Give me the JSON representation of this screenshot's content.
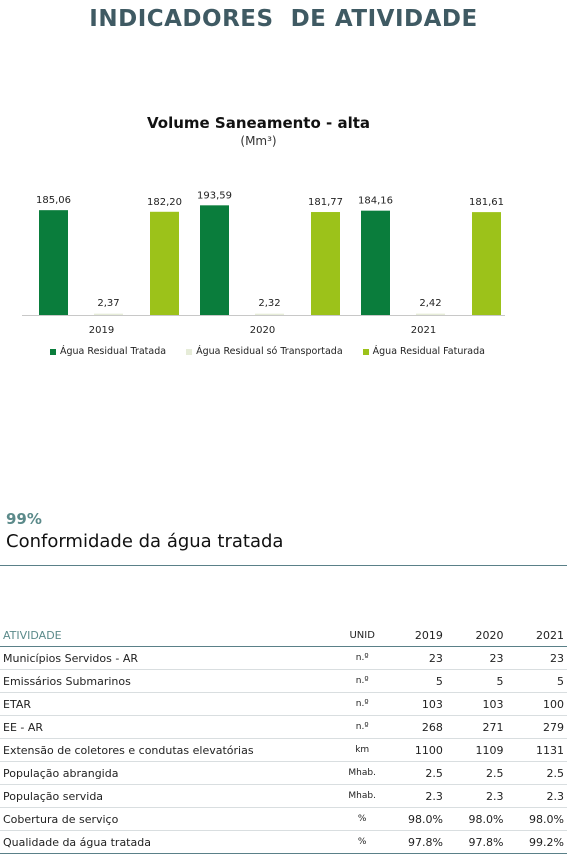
{
  "page": {
    "title": "INDICADORES  DE ATIVIDADE"
  },
  "chart_data": {
    "type": "bar",
    "title": "Volume Saneamento - alta",
    "subtitle": "(Mm³)",
    "categories": [
      "2019",
      "2020",
      "2021"
    ],
    "series": [
      {
        "name": "Água Residual Tratada",
        "values": [
          185.06,
          193.59,
          184.16
        ],
        "labels": [
          "185,06",
          "193,59",
          "184,16"
        ],
        "color": "#0a7d3c"
      },
      {
        "name": "Água Residual só Transportada",
        "values": [
          2.37,
          2.32,
          2.42
        ],
        "labels": [
          "2,37",
          "2,32",
          "2,42"
        ],
        "color": "#e6ecd8"
      },
      {
        "name": "Água Residual Faturada",
        "values": [
          182.2,
          181.77,
          181.61
        ],
        "labels": [
          "182,20",
          "181,77",
          "181,61"
        ],
        "color": "#9cc21a"
      }
    ],
    "ylim": [
      0,
      200
    ],
    "grid": false,
    "legend_position": "bottom"
  },
  "kpi": {
    "value": "99%",
    "label": "Conformidade da água tratada"
  },
  "table": {
    "headers": {
      "name": "ATIVIDADE",
      "unit": "UNID",
      "y2019": "2019",
      "y2020": "2020",
      "y2021": "2021"
    },
    "rows": [
      {
        "name": "Municípios Servidos - AR",
        "unit": "n.º",
        "y2019": "23",
        "y2020": "23",
        "y2021": "23"
      },
      {
        "name": "Emissários Submarinos",
        "unit": "n.º",
        "y2019": "5",
        "y2020": "5",
        "y2021": "5"
      },
      {
        "name": "ETAR",
        "unit": "n.º",
        "y2019": "103",
        "y2020": "103",
        "y2021": "100"
      },
      {
        "name": "EE - AR",
        "unit": "n.º",
        "y2019": "268",
        "y2020": "271",
        "y2021": "279"
      },
      {
        "name": "Extensão de coletores e condutas elevatórias",
        "unit": "km",
        "y2019": "1100",
        "y2020": "1109",
        "y2021": "1131"
      },
      {
        "name": "População abrangida",
        "unit": "Mhab.",
        "y2019": "2.5",
        "y2020": "2.5",
        "y2021": "2.5"
      },
      {
        "name": "População servida",
        "unit": "Mhab.",
        "y2019": "2.3",
        "y2020": "2.3",
        "y2021": "2.3"
      },
      {
        "name": "Cobertura de serviço",
        "unit": "%",
        "y2019": "98.0%",
        "y2020": "98.0%",
        "y2021": "98.0%"
      },
      {
        "name": "Qualidade da água tratada",
        "unit": "%",
        "y2019": "97.8%",
        "y2020": "97.8%",
        "y2021": "99.2%"
      }
    ]
  }
}
